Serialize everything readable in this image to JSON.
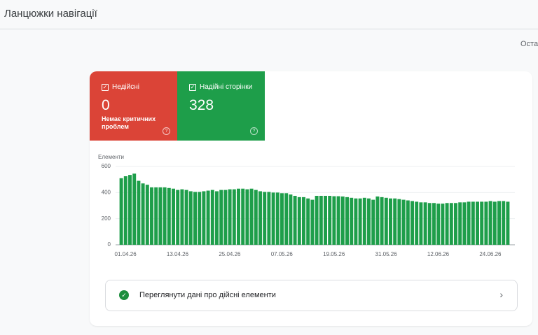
{
  "header": {
    "title": "Ланцюжки навігації",
    "last_updated": "Остан"
  },
  "tiles": [
    {
      "label": "Недійсні",
      "value": 0,
      "note": "Немає критичних проблем"
    },
    {
      "label": "Надійні сторінки",
      "value": 328
    }
  ],
  "chart_data": {
    "type": "bar",
    "y_label": "Елементи",
    "color": "#1e9e4a",
    "categories": [
      "01.04.26",
      null,
      null,
      null,
      null,
      null,
      null,
      null,
      null,
      null,
      null,
      null,
      "13.04.26",
      null,
      null,
      null,
      null,
      null,
      null,
      null,
      null,
      null,
      null,
      null,
      "25.04.26",
      null,
      null,
      null,
      null,
      null,
      null,
      null,
      null,
      null,
      null,
      null,
      "07.05.26",
      null,
      null,
      null,
      null,
      null,
      null,
      null,
      null,
      null,
      null,
      null,
      "19.05.26",
      null,
      null,
      null,
      null,
      null,
      null,
      null,
      null,
      null,
      null,
      null,
      "31.05.26",
      null,
      null,
      null,
      null,
      null,
      null,
      null,
      null,
      null,
      null,
      null,
      "12.06.26",
      null,
      null,
      null,
      null,
      null,
      null,
      null,
      null,
      null,
      null,
      null,
      "24.06.26",
      null,
      null,
      null,
      null,
      null
    ],
    "values": [
      510,
      525,
      535,
      545,
      490,
      470,
      460,
      440,
      440,
      440,
      440,
      435,
      430,
      420,
      425,
      420,
      410,
      405,
      405,
      410,
      415,
      420,
      410,
      420,
      420,
      425,
      425,
      430,
      430,
      425,
      430,
      420,
      410,
      405,
      405,
      400,
      400,
      395,
      395,
      385,
      375,
      365,
      365,
      355,
      345,
      375,
      375,
      375,
      375,
      372,
      372,
      370,
      365,
      360,
      355,
      355,
      360,
      355,
      345,
      370,
      365,
      360,
      355,
      355,
      350,
      345,
      340,
      335,
      330,
      325,
      325,
      320,
      320,
      315,
      315,
      320,
      320,
      320,
      325,
      325,
      330,
      330,
      330,
      330,
      330,
      335,
      330,
      335,
      335,
      330
    ],
    "ylim": [
      0,
      600
    ],
    "yticks": [
      0,
      200,
      400,
      600
    ],
    "grid": true
  },
  "button": {
    "label": "Переглянути дані про дійсні елементи"
  }
}
